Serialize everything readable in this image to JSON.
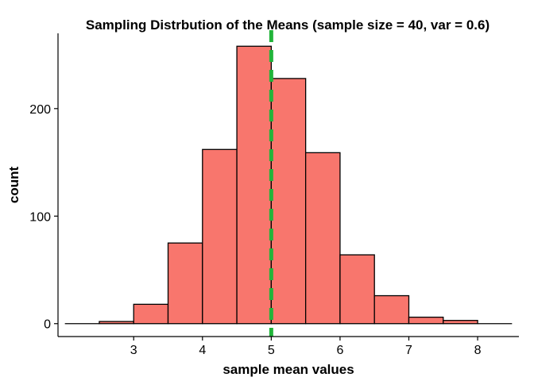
{
  "chart_data": {
    "type": "bar",
    "title": "Sampling Distrbution of the Means (sample size = 40, var = 0.6)",
    "xlabel": "sample mean values",
    "ylabel": "count",
    "xlim": [
      1.9,
      8.6
    ],
    "ylim": [
      -12,
      270
    ],
    "x_ticks": [
      3,
      4,
      5,
      6,
      7,
      8
    ],
    "y_ticks": [
      0,
      100,
      200
    ],
    "bin_width": 0.5,
    "bins": [
      {
        "start": 2.0,
        "end": 2.5,
        "count": 0
      },
      {
        "start": 2.5,
        "end": 3.0,
        "count": 2
      },
      {
        "start": 3.0,
        "end": 3.5,
        "count": 18
      },
      {
        "start": 3.5,
        "end": 4.0,
        "count": 75
      },
      {
        "start": 4.0,
        "end": 4.5,
        "count": 162
      },
      {
        "start": 4.5,
        "end": 5.0,
        "count": 258
      },
      {
        "start": 5.0,
        "end": 5.5,
        "count": 228
      },
      {
        "start": 5.5,
        "end": 6.0,
        "count": 159
      },
      {
        "start": 6.0,
        "end": 6.5,
        "count": 64
      },
      {
        "start": 6.5,
        "end": 7.0,
        "count": 26
      },
      {
        "start": 7.0,
        "end": 7.5,
        "count": 6
      },
      {
        "start": 7.5,
        "end": 8.0,
        "count": 3
      },
      {
        "start": 8.0,
        "end": 8.5,
        "count": 0
      }
    ],
    "reference_line": {
      "x": 5,
      "color": "#22b43a",
      "style": "dashed"
    },
    "bar_fill": "#f8766d",
    "bar_stroke": "#000000",
    "grid": false
  }
}
